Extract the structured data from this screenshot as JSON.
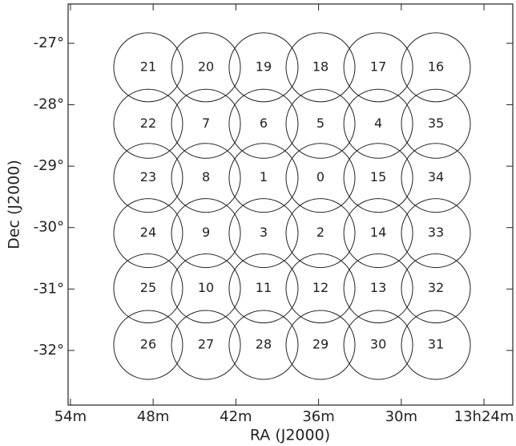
{
  "chart_data": {
    "type": "scatter",
    "xlabel": "RA (J2000)",
    "ylabel": "Dec (J2000)",
    "x": [
      48.36,
      44.17,
      39.99,
      35.86,
      31.67,
      27.49,
      48.36,
      44.17,
      39.99,
      35.86,
      31.67,
      27.49,
      48.36,
      44.17,
      39.99,
      35.86,
      31.67,
      27.49,
      48.36,
      44.17,
      39.99,
      35.86,
      31.67,
      27.49,
      48.36,
      44.17,
      39.99,
      35.86,
      31.67,
      27.49,
      48.36,
      44.17,
      39.99,
      35.86,
      31.67,
      27.49
    ],
    "y": [
      -27.39,
      -27.39,
      -27.39,
      -27.39,
      -27.39,
      -27.39,
      -28.31,
      -28.31,
      -28.31,
      -28.31,
      -28.31,
      -28.31,
      -29.19,
      -29.19,
      -29.19,
      -29.19,
      -29.19,
      -29.19,
      -30.09,
      -30.09,
      -30.09,
      -30.09,
      -30.09,
      -30.09,
      -30.99,
      -30.99,
      -30.99,
      -30.99,
      -30.99,
      -30.99,
      -31.91,
      -31.91,
      -31.91,
      -31.91,
      -31.91,
      -31.91
    ],
    "labels": [
      "21",
      "20",
      "19",
      "18",
      "17",
      "16",
      "22",
      "7",
      "6",
      "5",
      "4",
      "35",
      "23",
      "8",
      "1",
      "0",
      "15",
      "34",
      "24",
      "9",
      "3",
      "2",
      "14",
      "33",
      "25",
      "10",
      "11",
      "12",
      "13",
      "32",
      "26",
      "27",
      "28",
      "29",
      "30",
      "31"
    ],
    "color": "#222222",
    "xlim": [
      54.17,
      21.91
    ],
    "ylim": [
      -32.89,
      -26.36
    ],
    "xticks": [
      {
        "value": 54,
        "label": "54m"
      },
      {
        "value": 48,
        "label": "48m"
      },
      {
        "value": 42,
        "label": "42m"
      },
      {
        "value": 36,
        "label": "36m"
      },
      {
        "value": 30,
        "label": "30m"
      },
      {
        "value": 24,
        "label": "13h24m"
      }
    ],
    "yticks": [
      {
        "value": -27,
        "label": "-27°"
      },
      {
        "value": -28,
        "label": "-28°"
      },
      {
        "value": -29,
        "label": "-29°"
      },
      {
        "value": -30,
        "label": "-30°"
      },
      {
        "value": -31,
        "label": "-31°"
      },
      {
        "value": -32,
        "label": "-32°"
      }
    ]
  }
}
